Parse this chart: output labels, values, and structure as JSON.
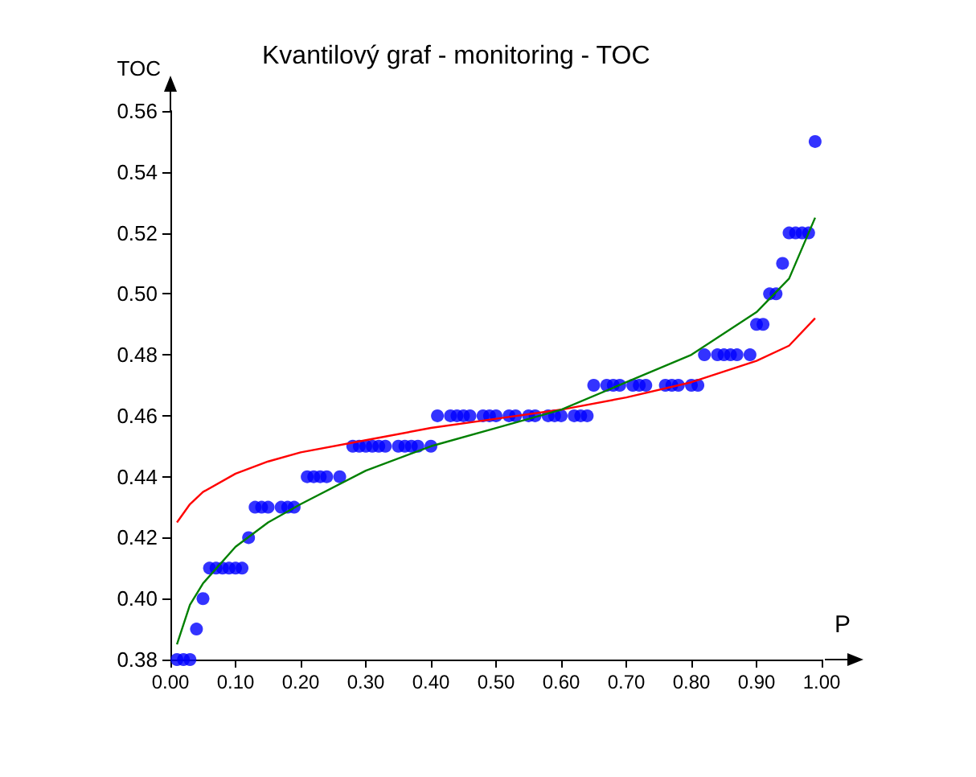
{
  "chart_data": {
    "type": "scatter",
    "title": "Kvantilový graf - monitoring - TOC",
    "xlabel": "P",
    "ylabel": "TOC",
    "xlim": [
      0,
      1
    ],
    "ylim": [
      0.38,
      0.56
    ],
    "xticks": [
      {
        "value": 0,
        "label": "0.00"
      },
      {
        "value": 0.1,
        "label": "0.10"
      },
      {
        "value": 0.2,
        "label": "0.20"
      },
      {
        "value": 0.3,
        "label": "0.30"
      },
      {
        "value": 0.4,
        "label": "0.40"
      },
      {
        "value": 0.5,
        "label": "0.50"
      },
      {
        "value": 0.6,
        "label": "0.60"
      },
      {
        "value": 0.7,
        "label": "0.70"
      },
      {
        "value": 0.8,
        "label": "0.80"
      },
      {
        "value": 0.9,
        "label": "0.90"
      },
      {
        "value": 1,
        "label": "1.00"
      }
    ],
    "yticks": [
      0.38,
      {
        "value": 0.4,
        "label": "0.40"
      },
      0.42,
      0.44,
      0.46,
      0.48,
      {
        "value": 0.5,
        "label": "0.50"
      },
      0.52,
      0.54,
      0.56
    ],
    "grid": false,
    "series": [
      {
        "color": "#0000ff",
        "marker": "circle",
        "x": [
          0.01,
          0.02,
          0.03,
          0.04,
          0.05,
          0.06,
          0.07,
          0.08,
          0.09,
          0.1,
          0.11,
          0.12,
          0.13,
          0.14,
          0.15,
          0.17,
          0.18,
          0.19,
          0.21,
          0.22,
          0.23,
          0.24,
          0.26,
          0.28,
          0.29,
          0.3,
          0.31,
          0.32,
          0.33,
          0.35,
          0.36,
          0.37,
          0.38,
          0.4,
          0.41,
          0.43,
          0.44,
          0.45,
          0.46,
          0.48,
          0.49,
          0.5,
          0.52,
          0.53,
          0.55,
          0.56,
          0.58,
          0.59,
          0.6,
          0.62,
          0.63,
          0.64,
          0.65,
          0.67,
          0.68,
          0.69,
          0.71,
          0.72,
          0.73,
          0.76,
          0.77,
          0.78,
          0.8,
          0.81,
          0.82,
          0.84,
          0.85,
          0.86,
          0.87,
          0.89,
          0.9,
          0.91,
          0.92,
          0.93,
          0.94,
          0.95,
          0.96,
          0.97,
          0.98,
          0.99
        ],
        "values": [
          0.38,
          0.38,
          0.38,
          0.39,
          0.4,
          0.41,
          0.41,
          0.41,
          0.41,
          0.41,
          0.41,
          0.42,
          0.43,
          0.43,
          0.43,
          0.43,
          0.43,
          0.43,
          0.44,
          0.44,
          0.44,
          0.44,
          0.44,
          0.45,
          0.45,
          0.45,
          0.45,
          0.45,
          0.45,
          0.45,
          0.45,
          0.45,
          0.45,
          0.45,
          0.46,
          0.46,
          0.46,
          0.46,
          0.46,
          0.46,
          0.46,
          0.46,
          0.46,
          0.46,
          0.46,
          0.46,
          0.46,
          0.46,
          0.46,
          0.46,
          0.46,
          0.46,
          0.47,
          0.47,
          0.47,
          0.47,
          0.47,
          0.47,
          0.47,
          0.47,
          0.47,
          0.47,
          0.47,
          0.47,
          0.48,
          0.48,
          0.48,
          0.48,
          0.48,
          0.48,
          0.49,
          0.49,
          0.5,
          0.5,
          0.51,
          0.52,
          0.52,
          0.52,
          0.52,
          0.55
        ]
      },
      {
        "type": "line",
        "color": "#ff0000",
        "marker": "none",
        "x": [
          0.01,
          0.03,
          0.05,
          0.1,
          0.15,
          0.2,
          0.3,
          0.4,
          0.5,
          0.6,
          0.7,
          0.8,
          0.9,
          0.95,
          0.99
        ],
        "values": [
          0.425,
          0.431,
          0.435,
          0.441,
          0.445,
          0.448,
          0.452,
          0.456,
          0.459,
          0.462,
          0.466,
          0.471,
          0.478,
          0.483,
          0.492
        ]
      },
      {
        "type": "line",
        "color": "#008000",
        "marker": "none",
        "x": [
          0.01,
          0.03,
          0.05,
          0.1,
          0.15,
          0.2,
          0.3,
          0.4,
          0.5,
          0.6,
          0.7,
          0.8,
          0.9,
          0.95,
          0.99
        ],
        "values": [
          0.385,
          0.398,
          0.405,
          0.417,
          0.425,
          0.431,
          0.442,
          0.45,
          0.456,
          0.462,
          0.471,
          0.48,
          0.494,
          0.505,
          0.525
        ]
      }
    ]
  }
}
